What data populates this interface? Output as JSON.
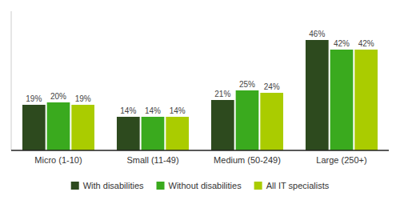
{
  "chart_data": {
    "type": "bar",
    "categories": [
      "Micro (1-10)",
      "Small (11-49)",
      "Medium (50-249)",
      "Large (250+)"
    ],
    "series": [
      {
        "name": "With disabilities",
        "color": "#2d4a1e",
        "values": [
          19,
          14,
          21,
          46
        ],
        "value_labels": [
          "19%",
          "14%",
          "21%",
          "46%"
        ]
      },
      {
        "name": "Without disabilities",
        "color": "#3aaa1e",
        "values": [
          20,
          14,
          25,
          42
        ],
        "value_labels": [
          "20%",
          "14%",
          "25%",
          "42%"
        ]
      },
      {
        "name": "All IT specialists",
        "color": "#aacc00",
        "values": [
          19,
          14,
          24,
          42
        ],
        "value_labels": [
          "19%",
          "14%",
          "24%",
          "42%"
        ]
      }
    ],
    "ylim": [
      0,
      58
    ],
    "yticks": [],
    "tick_labels": "x",
    "data_labels": true,
    "grid": false,
    "legend": "bottom"
  }
}
